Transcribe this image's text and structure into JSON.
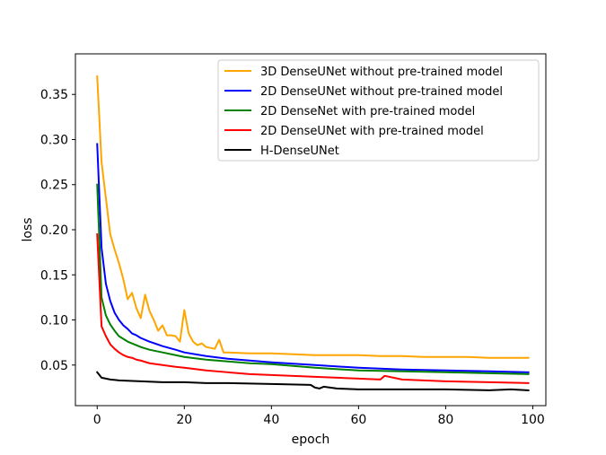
{
  "chart_data": {
    "type": "line",
    "title": "",
    "xlabel": "epoch",
    "ylabel": "loss",
    "xlim": [
      -5,
      103
    ],
    "ylim": [
      0.005,
      0.395
    ],
    "xticks": [
      0,
      20,
      40,
      60,
      80,
      100
    ],
    "yticks": [
      0.05,
      0.1,
      0.15,
      0.2,
      0.25,
      0.3,
      0.35
    ],
    "ytick_labels": [
      "0.05",
      "0.10",
      "0.15",
      "0.20",
      "0.25",
      "0.30",
      "0.35"
    ],
    "grid": false,
    "legend_position": "top-right",
    "series": [
      {
        "name": "3D DenseUNet without pre-trained model",
        "color": "#FFA500",
        "x": [
          0,
          1,
          2,
          3,
          4,
          5,
          6,
          7,
          8,
          9,
          10,
          11,
          12,
          13,
          14,
          15,
          16,
          17,
          18,
          19,
          20,
          21,
          22,
          23,
          24,
          25,
          26,
          27,
          28,
          29,
          30,
          35,
          40,
          45,
          50,
          55,
          60,
          65,
          70,
          75,
          80,
          85,
          90,
          95,
          99
        ],
        "values": [
          0.37,
          0.275,
          0.235,
          0.195,
          0.178,
          0.163,
          0.145,
          0.123,
          0.13,
          0.113,
          0.102,
          0.128,
          0.11,
          0.1,
          0.088,
          0.094,
          0.083,
          0.083,
          0.082,
          0.076,
          0.111,
          0.085,
          0.076,
          0.072,
          0.074,
          0.07,
          0.069,
          0.068,
          0.078,
          0.064,
          0.064,
          0.063,
          0.063,
          0.062,
          0.061,
          0.061,
          0.061,
          0.06,
          0.06,
          0.059,
          0.059,
          0.059,
          0.058,
          0.058,
          0.058
        ]
      },
      {
        "name": "2D DenseUNet without pre-trained model",
        "color": "#0000FF",
        "x": [
          0,
          1,
          2,
          3,
          4,
          5,
          6,
          7,
          8,
          9,
          10,
          12,
          15,
          18,
          20,
          25,
          30,
          35,
          40,
          50,
          60,
          70,
          80,
          90,
          99
        ],
        "values": [
          0.295,
          0.18,
          0.14,
          0.121,
          0.108,
          0.1,
          0.094,
          0.09,
          0.085,
          0.083,
          0.08,
          0.076,
          0.071,
          0.067,
          0.064,
          0.06,
          0.057,
          0.055,
          0.053,
          0.05,
          0.047,
          0.045,
          0.044,
          0.043,
          0.042
        ]
      },
      {
        "name": "2D DenseNet with pre-trained model",
        "color": "#008000",
        "x": [
          0,
          1,
          2,
          3,
          4,
          5,
          6,
          7,
          8,
          9,
          10,
          12,
          15,
          18,
          20,
          25,
          30,
          35,
          40,
          50,
          60,
          70,
          80,
          90,
          99
        ],
        "values": [
          0.25,
          0.125,
          0.105,
          0.095,
          0.088,
          0.082,
          0.079,
          0.076,
          0.074,
          0.072,
          0.07,
          0.067,
          0.064,
          0.061,
          0.059,
          0.056,
          0.054,
          0.052,
          0.051,
          0.047,
          0.044,
          0.043,
          0.042,
          0.041,
          0.04
        ]
      },
      {
        "name": "2D DenseUNet with pre-trained model",
        "color": "#FF0000",
        "x": [
          0,
          1,
          2,
          3,
          4,
          5,
          6,
          7,
          8,
          9,
          10,
          12,
          15,
          18,
          20,
          25,
          30,
          35,
          40,
          50,
          60,
          65,
          66,
          70,
          80,
          90,
          99
        ],
        "values": [
          0.195,
          0.093,
          0.082,
          0.073,
          0.068,
          0.064,
          0.061,
          0.059,
          0.058,
          0.056,
          0.055,
          0.052,
          0.05,
          0.048,
          0.047,
          0.044,
          0.042,
          0.04,
          0.039,
          0.037,
          0.035,
          0.034,
          0.038,
          0.034,
          0.032,
          0.031,
          0.03
        ]
      },
      {
        "name": "H-DenseUNet",
        "color": "#000000",
        "x": [
          0,
          1,
          2,
          3,
          5,
          10,
          15,
          20,
          25,
          30,
          40,
          49,
          50,
          51,
          52,
          55,
          60,
          70,
          80,
          90,
          95,
          99
        ],
        "values": [
          0.042,
          0.036,
          0.035,
          0.034,
          0.033,
          0.032,
          0.031,
          0.031,
          0.03,
          0.03,
          0.029,
          0.028,
          0.025,
          0.024,
          0.026,
          0.024,
          0.023,
          0.023,
          0.023,
          0.022,
          0.023,
          0.022
        ]
      }
    ]
  }
}
